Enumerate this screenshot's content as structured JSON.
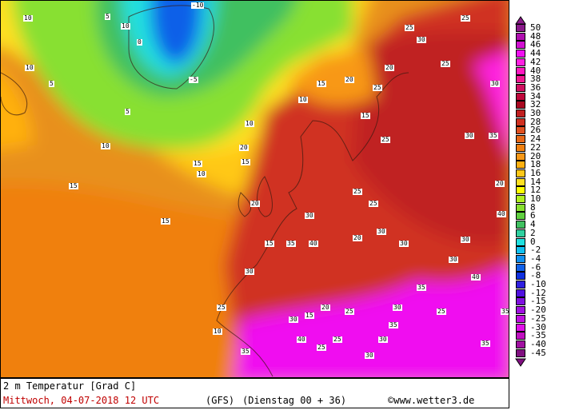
{
  "map": {
    "parameter": "2 m Temperatur [Grad C]",
    "valid_time": "Mittwoch, 04-07-2018  12 UTC",
    "model": "(GFS)",
    "run": "(Dienstag 00 + 36)",
    "copyright": "©www.wetter3.de",
    "temperature_labels": [
      "10",
      "5",
      "10",
      "0",
      "-5",
      "-10",
      "10",
      "5",
      "5",
      "10",
      "15",
      "15",
      "20",
      "10",
      "10",
      "15",
      "20",
      "10",
      "15",
      "20",
      "15",
      "25",
      "20",
      "25",
      "30",
      "25",
      "25",
      "30",
      "35",
      "40",
      "30",
      "35",
      "25",
      "30",
      "35",
      "40",
      "20",
      "30",
      "30",
      "25",
      "25",
      "25",
      "20",
      "15",
      "30",
      "25",
      "35",
      "30",
      "40",
      "30",
      "35",
      "25",
      "20",
      "15",
      "10",
      "15",
      "25",
      "30",
      "35",
      "30",
      "25",
      "30",
      "40",
      "35",
      "30"
    ]
  },
  "legend": {
    "labels": [
      "50",
      "48",
      "46",
      "44",
      "42",
      "40",
      "38",
      "36",
      "34",
      "32",
      "30",
      "28",
      "26",
      "24",
      "22",
      "20",
      "18",
      "16",
      "14",
      "12",
      "10",
      "8",
      "6",
      "4",
      "2",
      "0",
      "-2",
      "-4",
      "-6",
      "-8",
      "-10",
      "-12",
      "-15",
      "-20",
      "-25",
      "-30",
      "-35",
      "-40",
      "-45"
    ],
    "colors": [
      "#8a1a8a",
      "#b010b0",
      "#d010d0",
      "#f010f0",
      "#ff20e0",
      "#ff18c0",
      "#f01890",
      "#d01060",
      "#c0083c",
      "#a80820",
      "#c02020",
      "#d03020",
      "#e05020",
      "#e86818",
      "#f08010",
      "#f89818",
      "#ffb010",
      "#ffc818",
      "#ffe020",
      "#ffff00",
      "#b0f020",
      "#88e030",
      "#60d040",
      "#40c060",
      "#30d0a0",
      "#20e0e0",
      "#10c0f0",
      "#1090f0",
      "#1060e8",
      "#1030e0",
      "#3020e0",
      "#5010e0",
      "#8010e0",
      "#a010e0",
      "#c010e0",
      "#e010e8",
      "#c010c0",
      "#a010a0",
      "#801080"
    ],
    "top_arrow_color": "#8a1a8a",
    "bottom_arrow_color": "#801080"
  }
}
